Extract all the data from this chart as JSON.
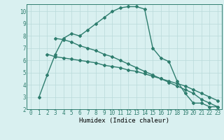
{
  "line1_x": [
    1,
    2,
    3,
    4,
    5,
    6,
    7,
    8,
    9,
    10,
    11,
    12,
    13,
    14,
    15,
    16,
    17,
    18,
    19,
    20,
    21,
    22,
    23
  ],
  "line1_y": [
    3.0,
    4.8,
    6.5,
    7.8,
    8.2,
    8.0,
    8.5,
    9.0,
    9.5,
    10.0,
    10.3,
    10.4,
    10.4,
    10.2,
    7.0,
    6.2,
    5.9,
    4.3,
    3.3,
    2.5,
    2.5,
    2.2,
    2.2
  ],
  "line2_x": [
    3,
    4,
    5,
    6,
    7,
    8,
    9,
    10,
    11,
    12,
    13,
    14,
    15,
    16,
    17,
    18,
    19,
    20,
    21,
    22,
    23
  ],
  "line2_y": [
    7.8,
    7.7,
    7.5,
    7.2,
    7.0,
    6.8,
    6.5,
    6.3,
    6.0,
    5.7,
    5.4,
    5.1,
    4.8,
    4.5,
    4.2,
    3.9,
    3.6,
    3.3,
    2.8,
    2.5,
    2.2
  ],
  "line3_x": [
    2,
    3,
    4,
    5,
    6,
    7,
    8,
    9,
    10,
    11,
    12,
    13,
    14,
    15,
    16,
    17,
    18,
    19,
    20,
    21,
    22,
    23
  ],
  "line3_y": [
    6.5,
    6.3,
    6.2,
    6.1,
    6.0,
    5.9,
    5.8,
    5.6,
    5.5,
    5.4,
    5.2,
    5.1,
    4.9,
    4.7,
    4.5,
    4.3,
    4.1,
    3.9,
    3.6,
    3.3,
    3.0,
    2.7
  ],
  "line_color": "#2e7d6e",
  "bg_color": "#d9f0f0",
  "grid_color": "#b8dada",
  "xlabel": "Humidex (Indice chaleur)",
  "xlim": [
    -0.5,
    23.5
  ],
  "ylim": [
    2,
    10.6
  ],
  "yticks": [
    2,
    3,
    4,
    5,
    6,
    7,
    8,
    9,
    10
  ],
  "xticks": [
    0,
    1,
    2,
    3,
    4,
    5,
    6,
    7,
    8,
    9,
    10,
    11,
    12,
    13,
    14,
    15,
    16,
    17,
    18,
    19,
    20,
    21,
    22,
    23
  ],
  "marker": "D",
  "markersize": 2.0,
  "linewidth": 1.0,
  "tick_fontsize": 5.5,
  "xlabel_fontsize": 6.5
}
